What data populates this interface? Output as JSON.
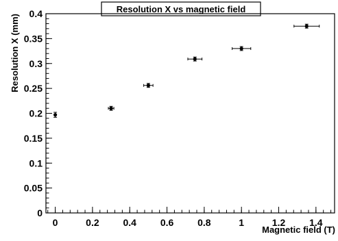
{
  "chart_data": {
    "type": "scatter",
    "title": "Resolution X vs magnetic field",
    "xlabel": "Magnetic field  (T)",
    "ylabel": "Resolution X   (mm)",
    "xlim": [
      -0.05,
      1.5
    ],
    "ylim": [
      0,
      0.4
    ],
    "x_ticks": [
      "0",
      "0.2",
      "0.4",
      "0.6",
      "0.8",
      "1",
      "1.2",
      "1.4"
    ],
    "y_ticks": [
      "0",
      "0.05",
      "0.1",
      "0.15",
      "0.2",
      "0.25",
      "0.3",
      "0.35",
      "0.4"
    ],
    "grid": false,
    "series": [
      {
        "points": [
          {
            "x": 0.0,
            "y": 0.197,
            "xerr": 0.0,
            "yerr": 0.005
          },
          {
            "x": 0.3,
            "y": 0.21,
            "xerr": 0.015,
            "yerr": 0.004
          },
          {
            "x": 0.5,
            "y": 0.256,
            "xerr": 0.025,
            "yerr": 0.004
          },
          {
            "x": 0.75,
            "y": 0.309,
            "xerr": 0.038,
            "yerr": 0.004
          },
          {
            "x": 1.0,
            "y": 0.33,
            "xerr": 0.05,
            "yerr": 0.004
          },
          {
            "x": 1.35,
            "y": 0.375,
            "xerr": 0.068,
            "yerr": 0.004
          }
        ]
      }
    ]
  }
}
